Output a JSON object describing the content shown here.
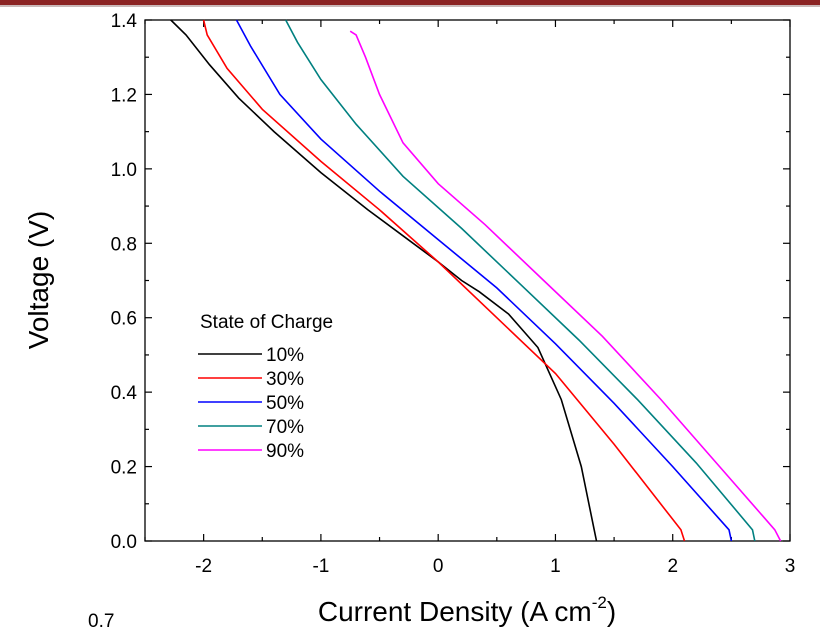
{
  "header": {
    "bar_color": "#8b2323"
  },
  "stray_text": "0.7",
  "chart_data": {
    "type": "line",
    "title": "",
    "xlabel": "Current Density (A cm",
    "xlabel_sup": "-2",
    "xlabel_end": ")",
    "ylabel": "Voltage (V)",
    "xlim": [
      -2.5,
      3.0
    ],
    "ylim": [
      0.0,
      1.4
    ],
    "xticks": [
      "-2",
      "-1",
      "0",
      "1",
      "2",
      "3"
    ],
    "yticks": [
      "0.0",
      "0.2",
      "0.4",
      "0.6",
      "0.8",
      "1.0",
      "1.2",
      "1.4"
    ],
    "xtick_values": [
      -2,
      -1,
      0,
      1,
      2,
      3
    ],
    "ytick_values": [
      0.0,
      0.2,
      0.4,
      0.6,
      0.8,
      1.0,
      1.2,
      1.4
    ],
    "grid": false,
    "legend": {
      "title": "State of Charge",
      "placement": "lower-left"
    },
    "series": [
      {
        "name": "10%",
        "color": "#000000",
        "x": [
          1.35,
          1.33,
          1.22,
          1.05,
          0.85,
          0.6,
          0.35,
          0.2,
          0.0,
          -0.3,
          -0.6,
          -1.0,
          -1.4,
          -1.7,
          -1.95,
          -2.15,
          -2.28
        ],
        "y": [
          0.0,
          0.03,
          0.2,
          0.38,
          0.52,
          0.61,
          0.67,
          0.7,
          0.75,
          0.82,
          0.89,
          0.99,
          1.1,
          1.19,
          1.28,
          1.36,
          1.4
        ]
      },
      {
        "name": "30%",
        "color": "#ff0000",
        "x": [
          2.1,
          2.07,
          1.5,
          1.0,
          0.5,
          0.0,
          -0.5,
          -1.0,
          -1.5,
          -1.8,
          -1.97,
          -2.0
        ],
        "y": [
          0.0,
          0.03,
          0.26,
          0.45,
          0.6,
          0.75,
          0.89,
          1.02,
          1.16,
          1.27,
          1.36,
          1.4
        ]
      },
      {
        "name": "50%",
        "color": "#0000ff",
        "x": [
          2.5,
          2.48,
          2.0,
          1.5,
          1.0,
          0.5,
          0.0,
          -0.5,
          -1.0,
          -1.35,
          -1.6,
          -1.72
        ],
        "y": [
          0.0,
          0.03,
          0.2,
          0.37,
          0.53,
          0.68,
          0.81,
          0.94,
          1.08,
          1.2,
          1.33,
          1.4
        ]
      },
      {
        "name": "70%",
        "color": "#008080",
        "x": [
          2.7,
          2.68,
          2.2,
          1.7,
          1.2,
          0.7,
          0.2,
          -0.3,
          -0.7,
          -1.0,
          -1.2,
          -1.3
        ],
        "y": [
          0.0,
          0.03,
          0.21,
          0.38,
          0.54,
          0.69,
          0.84,
          0.98,
          1.12,
          1.24,
          1.34,
          1.4
        ]
      },
      {
        "name": "90%",
        "color": "#ff00ff",
        "x": [
          2.92,
          2.87,
          2.4,
          1.9,
          1.4,
          0.9,
          0.4,
          0.0,
          -0.3,
          -0.5,
          -0.62,
          -0.7,
          -0.75
        ],
        "y": [
          0.0,
          0.03,
          0.2,
          0.38,
          0.55,
          0.7,
          0.85,
          0.96,
          1.07,
          1.2,
          1.3,
          1.36,
          1.37
        ]
      }
    ]
  }
}
